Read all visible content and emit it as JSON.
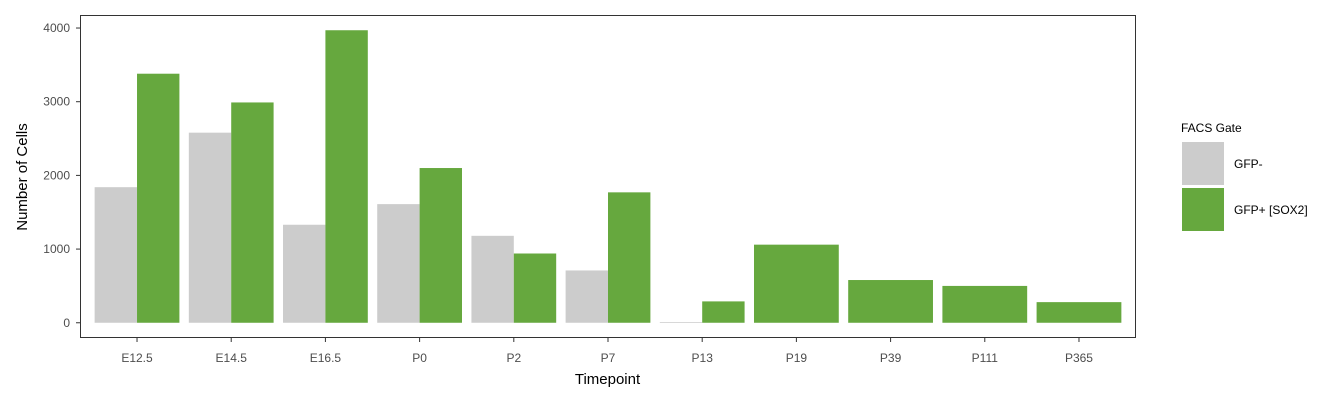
{
  "chart_data": {
    "type": "bar",
    "xlabel": "Timepoint",
    "ylabel": "Number of Cells",
    "categories": [
      "E12.5",
      "E14.5",
      "E16.5",
      "P0",
      "P2",
      "P7",
      "P13",
      "P19",
      "P39",
      "P111",
      "P365"
    ],
    "ylim": [
      -200,
      4170
    ],
    "yticks": [
      0,
      1000,
      2000,
      3000,
      4000
    ],
    "grid": false,
    "legend": {
      "title": "FACS Gate",
      "position": "right"
    },
    "series": [
      {
        "name": "GFP-",
        "color": "#cccccc",
        "values": [
          1840,
          2580,
          1330,
          1610,
          1180,
          710,
          10,
          null,
          null,
          null,
          null
        ]
      },
      {
        "name": "GFP+ [SOX2]",
        "color": "#66a83e",
        "values": [
          3380,
          2990,
          3970,
          2100,
          940,
          1770,
          290,
          1060,
          580,
          500,
          280
        ]
      }
    ]
  }
}
